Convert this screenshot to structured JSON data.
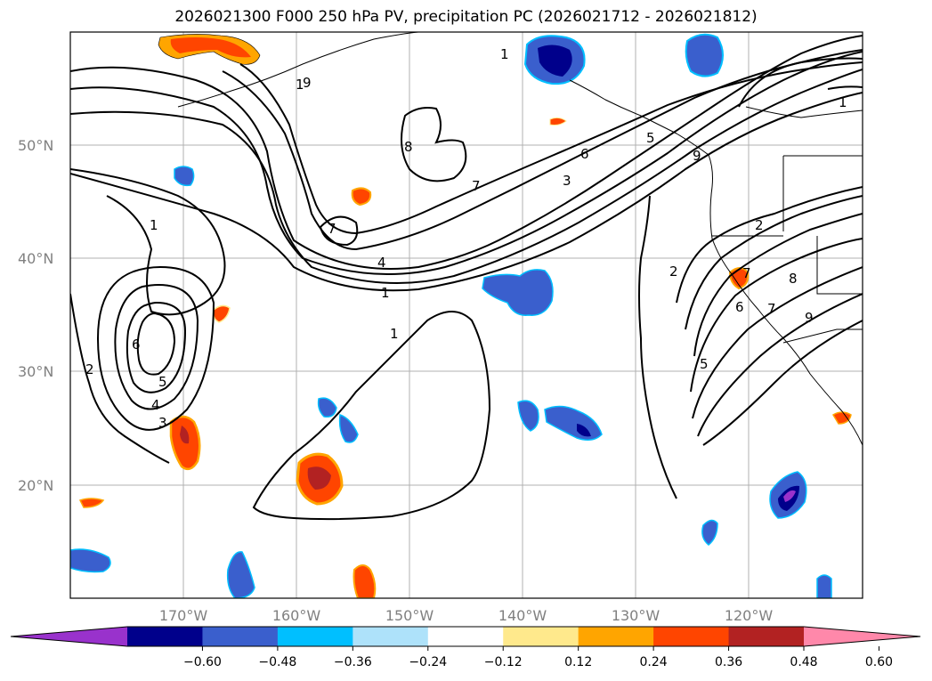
{
  "title": "2026021300 F000 250 hPa PV, precipitation PC (2026021712 - 2026021812)",
  "lat_labels": [
    "50°N",
    "40°N",
    "30°N",
    "20°N"
  ],
  "lon_labels": [
    "170°W",
    "160°W",
    "150°W",
    "140°W",
    "130°W",
    "120°W"
  ],
  "contour_labels": [
    "1",
    "1",
    "1",
    "1",
    "1",
    "1",
    "2",
    "2",
    "2",
    "3",
    "3",
    "4",
    "4",
    "5",
    "5",
    "5",
    "6",
    "6",
    "6",
    "7",
    "7",
    "7",
    "7",
    "8",
    "8",
    "9",
    "9",
    "9"
  ],
  "colorbar": {
    "ticks": [
      "−0.60",
      "−0.48",
      "−0.36",
      "−0.24",
      "−0.12",
      "0.12",
      "0.24",
      "0.36",
      "0.48",
      "0.60"
    ],
    "colors": [
      "#9932cc",
      "#00008b",
      "#3a5fcd",
      "#00bfff",
      "#aee2fa",
      "#ffffff",
      "#ffe98c",
      "#ffa500",
      "#ff4500",
      "#b22222",
      "#ff88aa"
    ]
  },
  "colors": {
    "contour": "#000000",
    "grid": "#b0b0b0",
    "coast": "#000000",
    "neg_light": "#00bfff",
    "neg_mid": "#3a5fcd",
    "neg_dark": "#00008b",
    "neg_extreme": "#9932cc",
    "pos_light": "#ffe98c",
    "pos_mid": "#ffa500",
    "pos_strong": "#ff4500",
    "pos_dark": "#b22222"
  }
}
